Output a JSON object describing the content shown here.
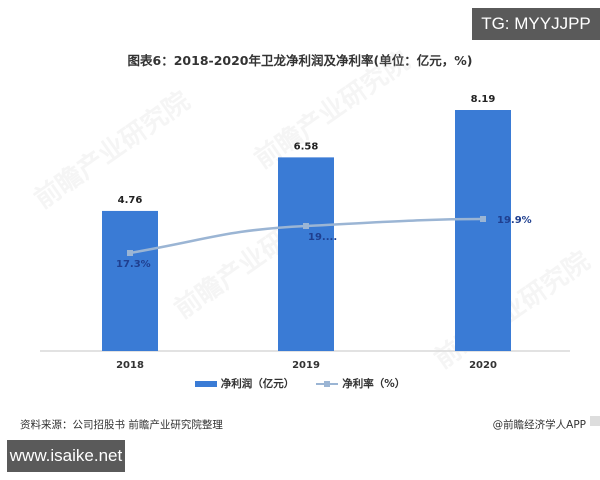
{
  "badges": {
    "tg": "TG: MYYJJPP",
    "site": "www.isaike.net"
  },
  "title": "图表6：2018-2020年卫龙净利润及净利率(单位：亿元，%)",
  "footer": {
    "source": "资料来源：公司招股书 前瞻产业研究院整理",
    "credit": "@前瞻经济学人APP"
  },
  "legend": {
    "bar_label": "净利润（亿元）",
    "line_label": "净利率（%）"
  },
  "watermark_text": "前瞻产业研究院",
  "colors": {
    "bar": "#3a7bd5",
    "line": "#9bb5d4",
    "line_label": "#1f3f8f",
    "axis": "#d9d9d9"
  },
  "chart_data": {
    "type": "bar",
    "title": "图表6：2018-2020年卫龙净利润及净利率(单位：亿元，%)",
    "xlabel": "",
    "ylabel": "",
    "categories": [
      "2018",
      "2019",
      "2020"
    ],
    "series": [
      {
        "name": "净利润（亿元）",
        "type": "bar",
        "values": [
          4.76,
          6.58,
          8.19
        ],
        "labels": [
          "4.76",
          "6.58",
          "8.19"
        ]
      },
      {
        "name": "净利率（%）",
        "type": "line",
        "values": [
          17.3,
          19.0,
          19.9
        ],
        "labels": [
          "17.3%",
          "19....",
          "19.9%"
        ],
        "secondary_axis": true
      }
    ],
    "grid": false,
    "legend_position": "bottom",
    "ylim": [
      0,
      8.19
    ]
  }
}
